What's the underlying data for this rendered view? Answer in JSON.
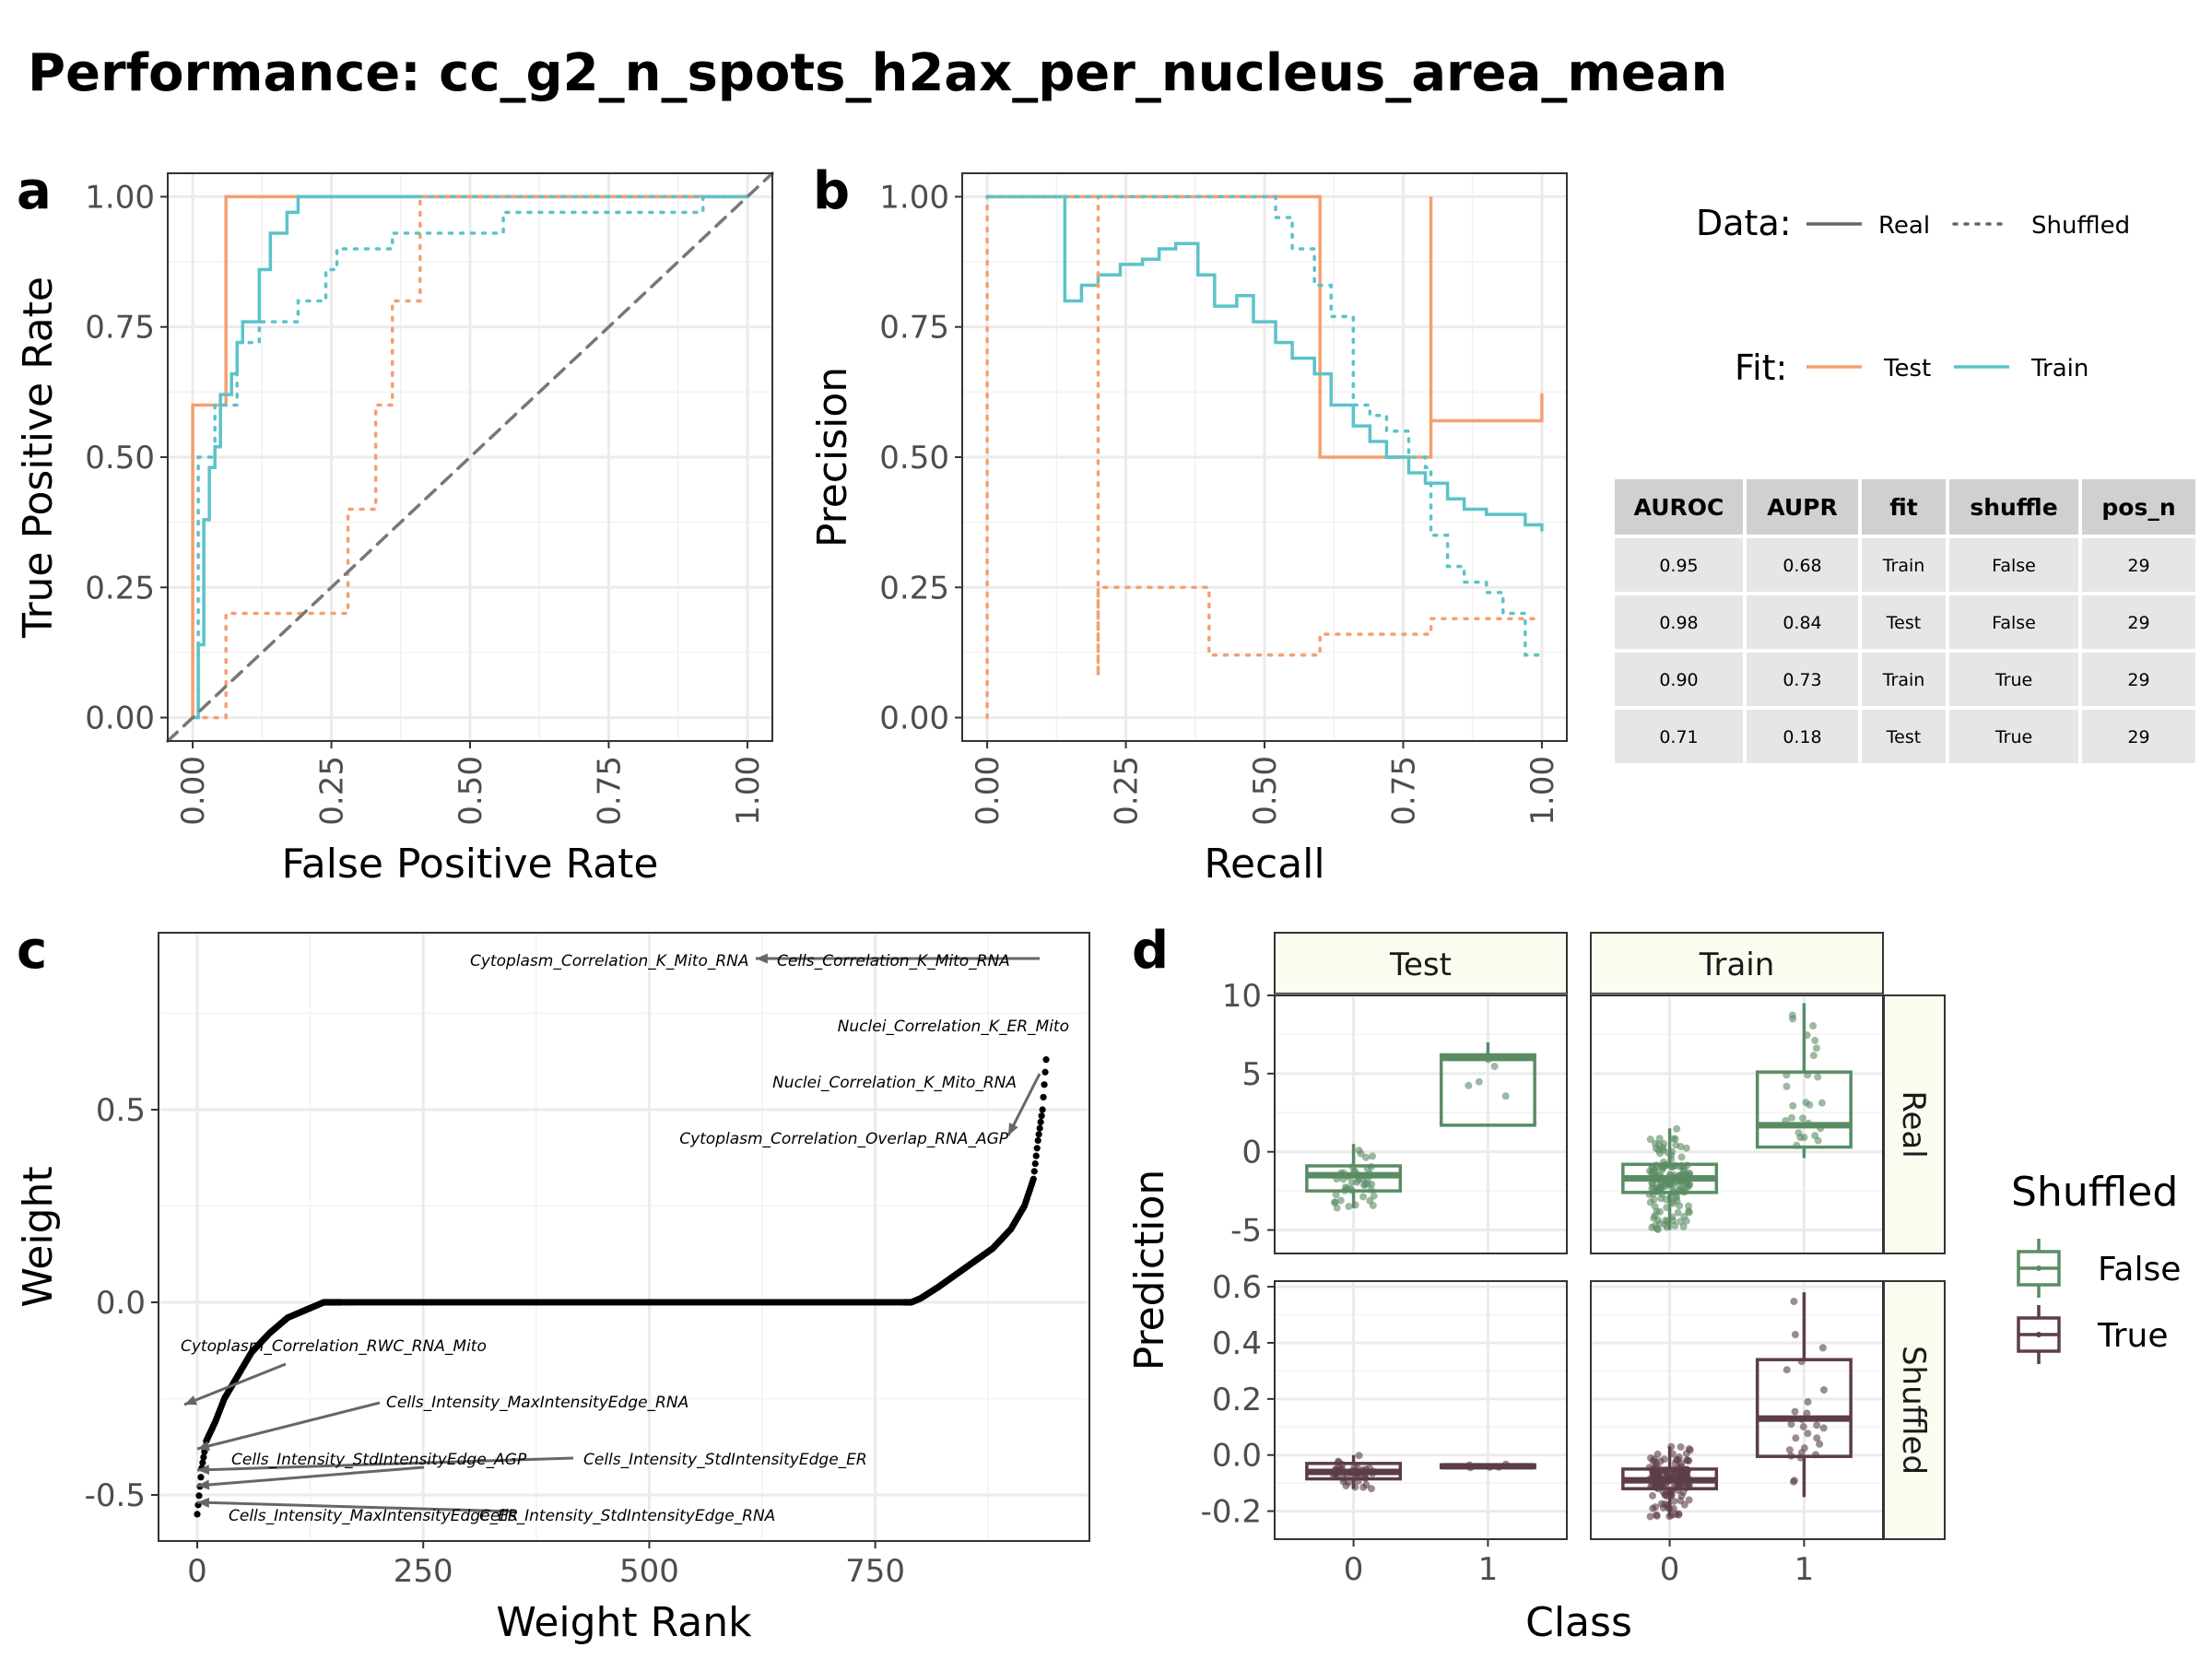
{
  "title": "Performance: cc_g2_n_spots_h2ax_per_nucleus_area_mean",
  "colors": {
    "test": "#F4A070",
    "train": "#5BC3C9",
    "reference": "#777777",
    "false_box": "#5A8C64",
    "true_box": "#5C3D4A",
    "grid": "#EBEBEB",
    "strip": "#FBFBF0",
    "table_header": "#D0D0D0",
    "table_row": "#E6E6E6"
  },
  "legend": {
    "data_label": "Data:",
    "data_real": "Real",
    "data_shuffled": "Shuffled",
    "fit_label": "Fit:",
    "fit_test": "Test",
    "fit_train": "Train",
    "shuffled_title": "Shuffled",
    "shuffled_false": "False",
    "shuffled_true": "True"
  },
  "metrics_table": {
    "headers": [
      "AUROC",
      "AUPR",
      "fit",
      "shuffle",
      "pos_n"
    ],
    "rows": [
      [
        "0.95",
        "0.68",
        "Train",
        "False",
        "29"
      ],
      [
        "0.98",
        "0.84",
        "Test",
        "False",
        "29"
      ],
      [
        "0.90",
        "0.73",
        "Train",
        "True",
        "29"
      ],
      [
        "0.71",
        "0.18",
        "Test",
        "True",
        "29"
      ]
    ]
  },
  "chart_data": [
    {
      "panel": "a",
      "type": "line",
      "xlabel": "False Positive Rate",
      "ylabel": "True Positive Rate",
      "xlim": [
        0,
        1
      ],
      "ylim": [
        0,
        1
      ],
      "xticks": [
        "0.00",
        "0.25",
        "0.50",
        "0.75",
        "1.00"
      ],
      "yticks": [
        "0.00",
        "0.25",
        "0.50",
        "0.75",
        "1.00"
      ],
      "grid": true,
      "series": [
        {
          "name": "Test",
          "data": "Real",
          "x": [
            0,
            0,
            0.06,
            0.06,
            0.06,
            0.06,
            1
          ],
          "y": [
            0,
            0.6,
            0.6,
            0.8,
            1.0,
            1.0,
            1.0
          ]
        },
        {
          "name": "Train",
          "data": "Real",
          "x": [
            0,
            0.01,
            0.02,
            0.03,
            0.04,
            0.05,
            0.07,
            0.08,
            0.09,
            0.12,
            0.14,
            0.17,
            0.19,
            0.19,
            1
          ],
          "y": [
            0,
            0.14,
            0.38,
            0.48,
            0.52,
            0.62,
            0.66,
            0.72,
            0.76,
            0.86,
            0.93,
            0.97,
            1.0,
            1.0,
            1.0
          ]
        },
        {
          "name": "Test",
          "data": "Shuffled",
          "x": [
            0,
            0.06,
            0.06,
            0.28,
            0.28,
            0.32,
            0.33,
            0.34,
            0.36,
            0.37,
            0.4,
            0.41,
            0.41,
            1
          ],
          "y": [
            0,
            0,
            0.2,
            0.2,
            0.4,
            0.4,
            0.6,
            0.6,
            0.8,
            0.8,
            0.8,
            0.97,
            1.0,
            1.0
          ]
        },
        {
          "name": "Train",
          "data": "Shuffled",
          "x": [
            0,
            0.01,
            0.04,
            0.08,
            0.12,
            0.19,
            0.24,
            0.26,
            0.3,
            0.36,
            0.44,
            0.54,
            0.56,
            0.9,
            0.92,
            1
          ],
          "y": [
            0,
            0.5,
            0.6,
            0.72,
            0.76,
            0.8,
            0.86,
            0.9,
            0.9,
            0.93,
            0.93,
            0.93,
            0.97,
            0.97,
            1.0,
            1.0
          ]
        },
        {
          "name": "chance",
          "data": "reference",
          "x": [
            0,
            1
          ],
          "y": [
            0,
            1
          ]
        }
      ]
    },
    {
      "panel": "b",
      "type": "line",
      "xlabel": "Recall",
      "ylabel": "Precision",
      "xlim": [
        0,
        1
      ],
      "ylim": [
        0,
        1
      ],
      "xticks": [
        "0.00",
        "0.25",
        "0.50",
        "0.75",
        "1.00"
      ],
      "yticks": [
        "0.00",
        "0.25",
        "0.50",
        "0.75",
        "1.00"
      ],
      "grid": true,
      "series": [
        {
          "name": "Test",
          "data": "Real",
          "x": [
            0,
            0.6,
            0.6,
            0.8,
            0.8,
            1.0,
            1.0
          ],
          "y": [
            1.0,
            1.0,
            0.5,
            1.0,
            0.57,
            0.57,
            0.62
          ]
        },
        {
          "name": "Train",
          "data": "Real",
          "x": [
            0,
            0.14,
            0.14,
            0.17,
            0.2,
            0.24,
            0.28,
            0.31,
            0.34,
            0.38,
            0.41,
            0.45,
            0.48,
            0.52,
            0.55,
            0.59,
            0.62,
            0.66,
            0.69,
            0.72,
            0.76,
            0.79,
            0.83,
            0.86,
            0.9,
            0.93,
            0.97,
            1.0
          ],
          "y": [
            1.0,
            1.0,
            0.8,
            0.83,
            0.85,
            0.87,
            0.88,
            0.9,
            0.91,
            0.85,
            0.79,
            0.81,
            0.76,
            0.72,
            0.69,
            0.66,
            0.6,
            0.56,
            0.53,
            0.5,
            0.47,
            0.45,
            0.42,
            0.4,
            0.39,
            0.39,
            0.37,
            0.36
          ]
        },
        {
          "name": "Test",
          "data": "Shuffled",
          "x": [
            0,
            0,
            0.2,
            0.2,
            0.2,
            0.4,
            0.4,
            0.6,
            0.6,
            0.8,
            0.8,
            1.0
          ],
          "y": [
            0,
            1.0,
            1.0,
            0.08,
            0.25,
            0.25,
            0.12,
            0.12,
            0.16,
            0.16,
            0.19,
            0.19
          ]
        },
        {
          "name": "Train",
          "data": "Shuffled",
          "x": [
            0,
            0.52,
            0.52,
            0.55,
            0.59,
            0.62,
            0.66,
            0.69,
            0.72,
            0.76,
            0.79,
            0.8,
            0.83,
            0.86,
            0.9,
            0.93,
            0.97,
            1.0
          ],
          "y": [
            1.0,
            1.0,
            0.96,
            0.9,
            0.83,
            0.77,
            0.6,
            0.58,
            0.55,
            0.5,
            0.48,
            0.35,
            0.29,
            0.26,
            0.24,
            0.2,
            0.12,
            0.12
          ]
        }
      ]
    },
    {
      "panel": "c",
      "type": "scatter",
      "xlabel": "Weight Rank",
      "ylabel": "Weight",
      "xlim": [
        0,
        940
      ],
      "ylim": [
        -0.55,
        0.9
      ],
      "xticks": [
        "0",
        "250",
        "500",
        "750"
      ],
      "yticks": [
        "-0.5",
        "0.0",
        "0.5"
      ],
      "grid": true,
      "curve": {
        "rank": [
          0,
          5,
          10,
          20,
          30,
          45,
          60,
          80,
          100,
          120,
          140,
          160,
          790,
          800,
          820,
          850,
          880,
          900,
          915,
          925,
          930,
          935,
          939
        ],
        "weight": [
          -0.55,
          -0.43,
          -0.36,
          -0.31,
          -0.25,
          -0.19,
          -0.13,
          -0.08,
          -0.04,
          -0.02,
          0.0,
          0.0,
          0.0,
          0.01,
          0.04,
          0.09,
          0.14,
          0.19,
          0.25,
          0.32,
          0.42,
          0.5,
          0.63
        ]
      },
      "annotations": [
        {
          "label": "Cytoplasm_Correlation_K_Mito_RNA",
          "rank": 939,
          "weight": 0.88
        },
        {
          "label": "Cells_Correlation_K_Mito_RNA",
          "rank": 939,
          "weight": 0.86
        },
        {
          "label": "Nuclei_Correlation_K_ER_Mito",
          "rank": 939,
          "weight": 0.63
        },
        {
          "label": "Nuclei_Correlation_K_Mito_RNA",
          "rank": 935,
          "weight": 0.5
        },
        {
          "label": "Cytoplasm_Correlation_Overlap_RNA_AGP",
          "rank": 935,
          "weight": 0.5
        },
        {
          "label": "Cytoplasm_Correlation_RWC_RNA_Mito",
          "rank": 10,
          "weight": -0.36
        },
        {
          "label": "Cells_Intensity_MaxIntensityEdge_RNA",
          "rank": 8,
          "weight": -0.38
        },
        {
          "label": "Cells_Intensity_StdIntensityEdge_AGP",
          "rank": 6,
          "weight": -0.4
        },
        {
          "label": "Cells_Intensity_StdIntensityEdge_ER",
          "rank": 4,
          "weight": -0.47
        },
        {
          "label": "Cells_Intensity_MaxIntensityEdge_ER",
          "rank": 2,
          "weight": -0.52
        },
        {
          "label": "Cells_Intensity_StdIntensityEdge_RNA",
          "rank": 1,
          "weight": -0.53
        }
      ]
    },
    {
      "panel": "d",
      "type": "box",
      "xlabel": "Class",
      "ylabel": "Prediction",
      "facet_columns": [
        "Test",
        "Train"
      ],
      "facet_rows": [
        "Real",
        "Shuffled"
      ],
      "categories": [
        "0",
        "1"
      ],
      "row_scales": {
        "Real": {
          "ylim": [
            -6.5,
            10
          ],
          "yticks": [
            10,
            5,
            0,
            -5
          ],
          "yticklabels": [
            "10",
            "5",
            "0",
            "-5"
          ]
        },
        "Shuffled": {
          "ylim": [
            -0.3,
            0.62
          ],
          "yticks": [
            0.6,
            0.4,
            0.2,
            0.0,
            -0.2
          ],
          "yticklabels": [
            "0.6",
            "0.4",
            "0.2",
            "0.0",
            "-0.2"
          ]
        }
      },
      "boxes": [
        {
          "row": "Real",
          "col": "Test",
          "class": "0",
          "shuffled": "False",
          "q1": -2.5,
          "median": -1.5,
          "q3": -0.9,
          "whisker_low": -3.6,
          "whisker_high": 0.5
        },
        {
          "row": "Real",
          "col": "Test",
          "class": "1",
          "shuffled": "False",
          "q1": 1.7,
          "median": 6.0,
          "q3": 6.2,
          "whisker_low": 1.7,
          "whisker_high": 7.0
        },
        {
          "row": "Real",
          "col": "Train",
          "class": "0",
          "shuffled": "False",
          "q1": -2.6,
          "median": -1.7,
          "q3": -0.8,
          "whisker_low": -5.0,
          "whisker_high": 1.5
        },
        {
          "row": "Real",
          "col": "Train",
          "class": "1",
          "shuffled": "False",
          "q1": 0.3,
          "median": 1.7,
          "q3": 5.1,
          "whisker_low": -0.4,
          "whisker_high": 9.5
        },
        {
          "row": "Shuffled",
          "col": "Test",
          "class": "0",
          "shuffled": "True",
          "q1": -0.085,
          "median": -0.06,
          "q3": -0.03,
          "whisker_low": -0.12,
          "whisker_high": 0.0
        },
        {
          "row": "Shuffled",
          "col": "Test",
          "class": "1",
          "shuffled": "True",
          "q1": -0.045,
          "median": -0.04,
          "q3": -0.035,
          "whisker_low": -0.05,
          "whisker_high": -0.03
        },
        {
          "row": "Shuffled",
          "col": "Train",
          "class": "0",
          "shuffled": "True",
          "q1": -0.12,
          "median": -0.09,
          "q3": -0.05,
          "whisker_low": -0.22,
          "whisker_high": 0.03
        },
        {
          "row": "Shuffled",
          "col": "Train",
          "class": "1",
          "shuffled": "True",
          "q1": -0.005,
          "median": 0.13,
          "q3": 0.34,
          "whisker_low": -0.15,
          "whisker_high": 0.58
        }
      ]
    }
  ],
  "panel_letters": [
    "a",
    "b",
    "c",
    "d"
  ]
}
